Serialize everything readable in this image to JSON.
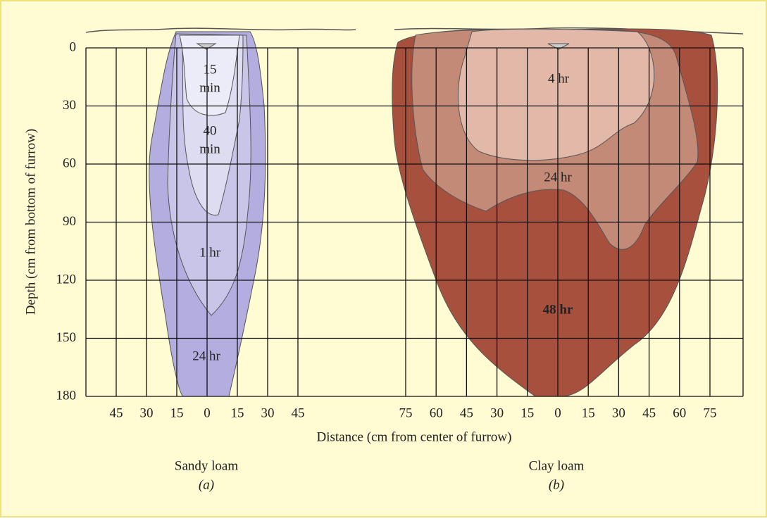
{
  "y_axis": {
    "label": "Depth (cm from bottom of furrow)",
    "ticks": [
      0,
      30,
      60,
      90,
      120,
      150,
      180
    ]
  },
  "x_axis": {
    "label": "Distance (cm from center of furrow)",
    "panel_a_ticks": [
      45,
      30,
      15,
      0,
      15,
      30,
      45
    ],
    "panel_b_ticks": [
      75,
      60,
      45,
      30,
      15,
      0,
      15,
      30,
      45,
      60,
      75
    ]
  },
  "panels": [
    {
      "caption": "Sandy loam",
      "letter": "(a)",
      "zones": [
        {
          "lines": [
            "15",
            "min"
          ]
        },
        {
          "lines": [
            "40",
            "min"
          ]
        },
        {
          "lines": [
            "1 hr"
          ]
        },
        {
          "lines": [
            "24 hr"
          ]
        }
      ]
    },
    {
      "caption": "Clay loam",
      "letter": "(b)",
      "zones": [
        {
          "lines": [
            "4 hr"
          ]
        },
        {
          "lines": [
            "24 hr"
          ]
        },
        {
          "lines": [
            "48 hr"
          ]
        }
      ]
    }
  ]
}
